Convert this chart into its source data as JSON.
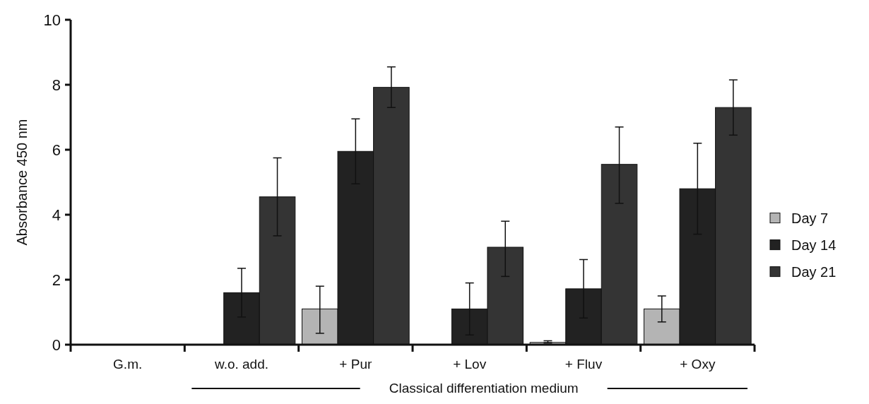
{
  "chart_data": {
    "type": "bar",
    "ylabel": "Absorbance 450 nm",
    "categories": [
      "G.m.",
      "w.o. add.",
      "+ Pur",
      "+ Lov",
      "+ Fluv",
      "+ Oxy"
    ],
    "series": [
      {
        "name": "Day 7",
        "color": "#b4b4b4",
        "values": [
          null,
          null,
          1.1,
          null,
          0.07,
          1.1
        ],
        "errors": [
          null,
          null,
          [
            0.35,
            1.8
          ],
          null,
          [
            0.05,
            0.12
          ],
          [
            0.7,
            1.5
          ]
        ]
      },
      {
        "name": "Day 14",
        "color": "#222222",
        "values": [
          null,
          1.6,
          5.95,
          1.1,
          1.72,
          4.8
        ],
        "errors": [
          null,
          [
            0.85,
            2.35
          ],
          [
            4.95,
            6.95
          ],
          [
            0.3,
            1.9
          ],
          [
            0.82,
            2.62
          ],
          [
            3.4,
            6.2
          ]
        ]
      },
      {
        "name": "Day 21",
        "color": "#343434",
        "values": [
          0.01,
          4.55,
          7.92,
          3.0,
          5.55,
          7.3
        ],
        "errors": [
          null,
          [
            3.35,
            5.75
          ],
          [
            7.3,
            8.55
          ],
          [
            2.1,
            3.8
          ],
          [
            4.35,
            6.7
          ],
          [
            6.45,
            8.15
          ]
        ]
      }
    ],
    "ylim": [
      0,
      10
    ],
    "yticks": [
      0,
      2,
      4,
      6,
      8,
      10
    ],
    "grid": false,
    "legend": "right",
    "annotations": [
      "Classical differentiation medium"
    ]
  }
}
